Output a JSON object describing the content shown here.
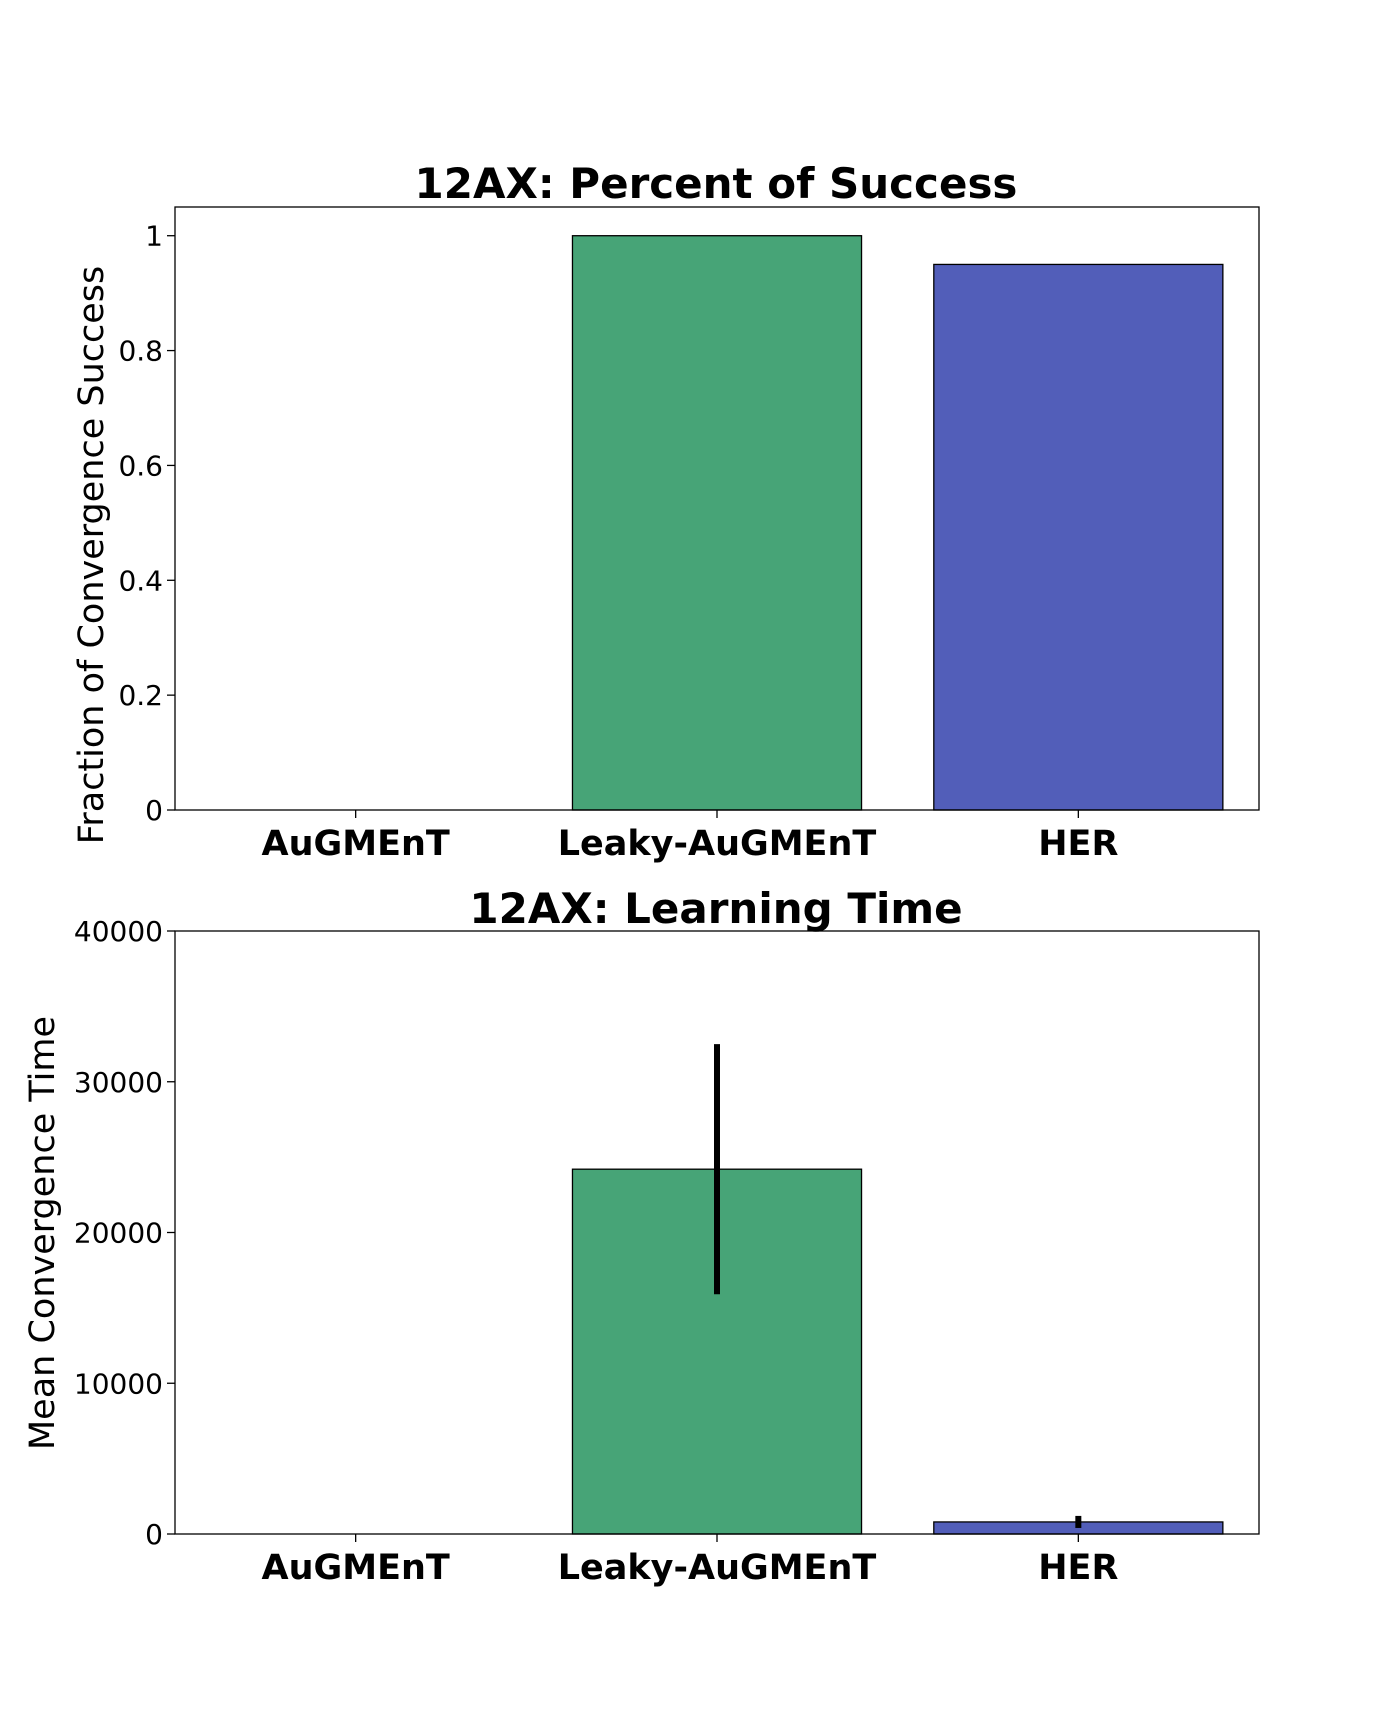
{
  "chart_data": [
    {
      "type": "bar",
      "title": "12AX: Percent of Success",
      "xlabel": "",
      "ylabel": "Fraction of Convergence Success",
      "categories": [
        "AuGMEnT",
        "Leaky-AuGMEnT",
        "HER"
      ],
      "values": [
        0,
        1.0,
        0.95
      ],
      "ylim": [
        0,
        1.05
      ],
      "yticks": [
        0,
        0.2,
        0.4,
        0.6,
        0.8,
        1
      ],
      "ytick_labels": [
        "0",
        "0.2",
        "0.4",
        "0.6",
        "0.8",
        "1"
      ],
      "colors": [
        "#ffffff",
        "#47a477",
        "#525eb9"
      ],
      "grid": false,
      "legend": "none"
    },
    {
      "type": "bar",
      "title": "12AX: Learning Time",
      "xlabel": "",
      "ylabel": "Mean Convergence Time",
      "categories": [
        "AuGMEnT",
        "Leaky-AuGMEnT",
        "HER"
      ],
      "values": [
        0,
        24200,
        800
      ],
      "errors": [
        0,
        8300,
        400
      ],
      "ylim": [
        0,
        40000
      ],
      "yticks": [
        0,
        10000,
        20000,
        30000,
        40000
      ],
      "ytick_labels": [
        "0",
        "10000",
        "20000",
        "30000",
        "40000"
      ],
      "colors": [
        "#ffffff",
        "#47a477",
        "#525eb9"
      ],
      "grid": false,
      "legend": "none"
    }
  ]
}
